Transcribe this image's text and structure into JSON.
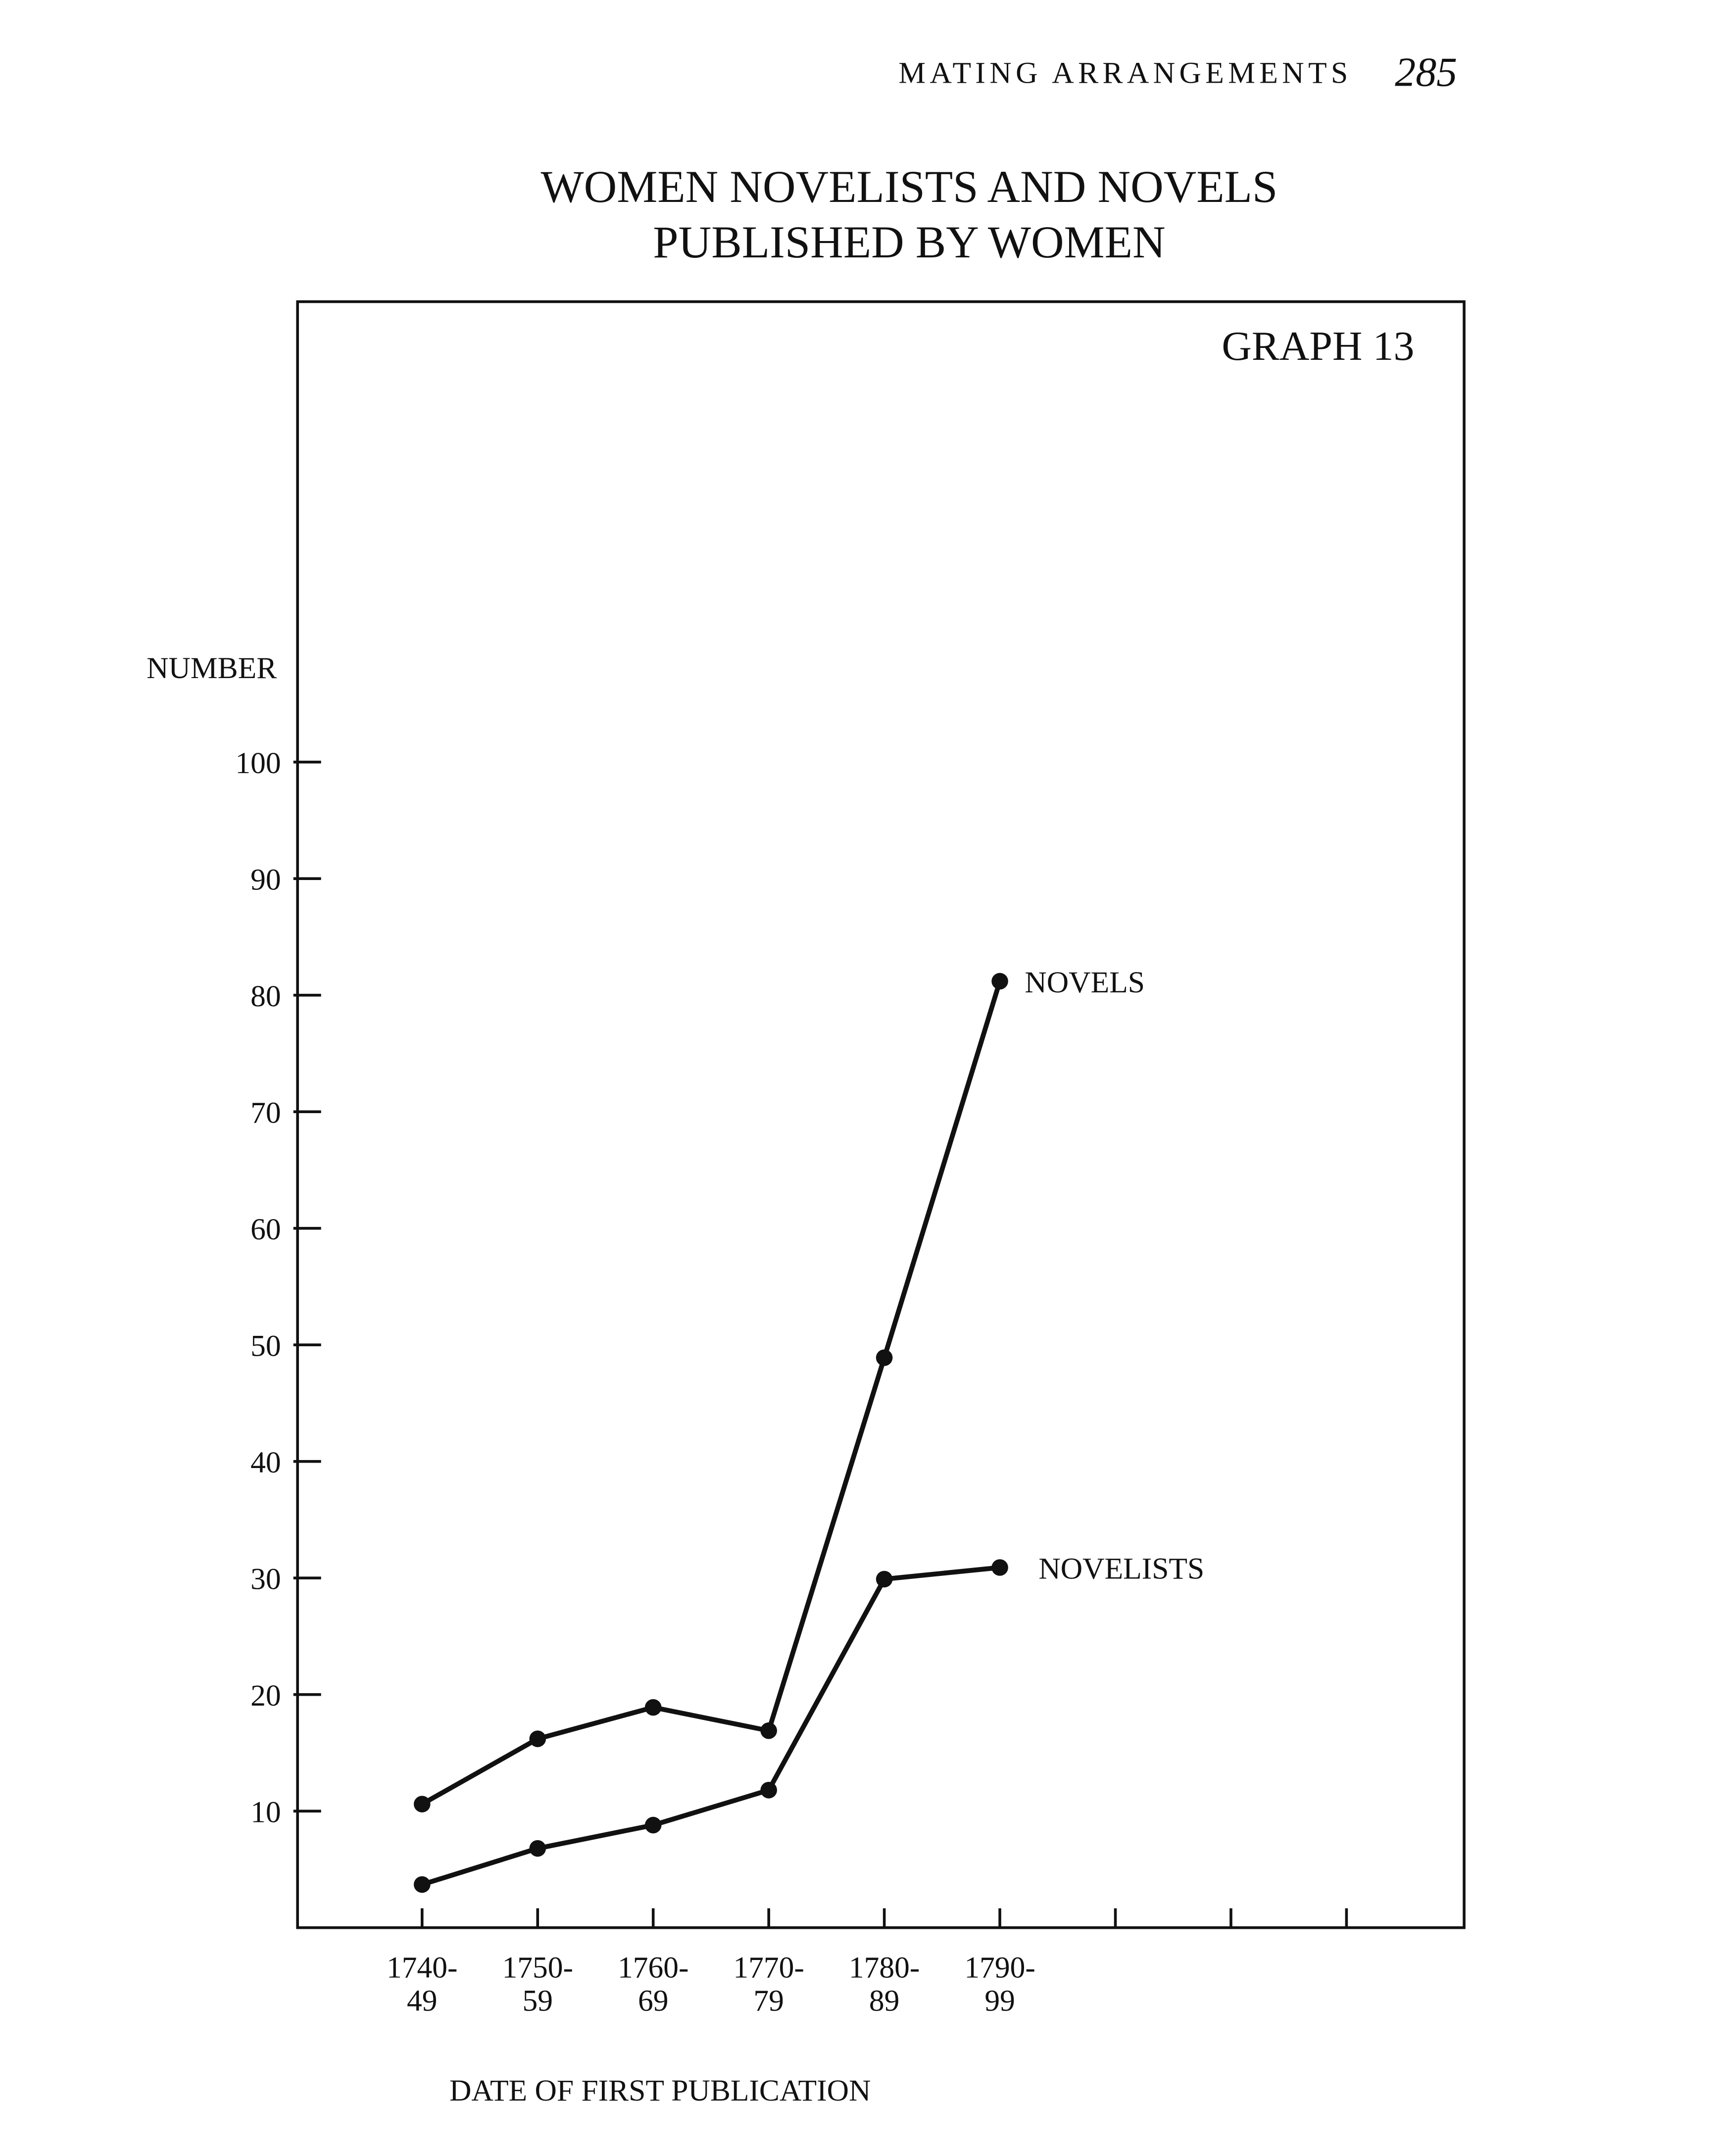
{
  "header": {
    "running_title": "MATING ARRANGEMENTS",
    "page_number": "285"
  },
  "chart_data": {
    "type": "line",
    "title": "WOMEN NOVELISTS AND NOVELS",
    "subtitle": "PUBLISHED BY WOMEN",
    "annotation": "GRAPH 13",
    "y_label": "NUMBER",
    "x_label": "DATE OF FIRST PUBLICATION",
    "categories": [
      "1740-\n49",
      "1750-\n59",
      "1760-\n69",
      "1770-\n79",
      "1780-\n89",
      "1790-\n99",
      null,
      null,
      null
    ],
    "series": [
      {
        "name": "NOVELS",
        "color": "#111111",
        "values": [
          10.6,
          16.2,
          18.9,
          16.9,
          48.9,
          81.2,
          null,
          null,
          null
        ]
      },
      {
        "name": "NOVELISTS",
        "color": "#111111",
        "values": [
          3.7,
          6.8,
          8.8,
          11.8,
          29.9,
          30.9,
          null,
          null,
          null
        ]
      }
    ],
    "ylim": [
      0,
      139.5
    ],
    "yticks": [
      10,
      20,
      30,
      40,
      50,
      60,
      70,
      80,
      90,
      100
    ],
    "grid": false
  }
}
